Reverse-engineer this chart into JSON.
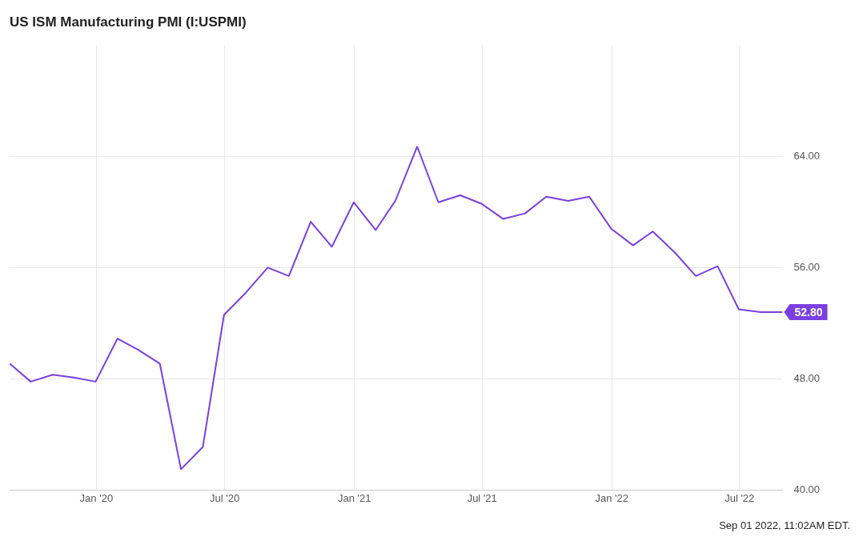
{
  "chart_data": {
    "type": "line",
    "title": "US ISM Manufacturing PMI (I:USPMI)",
    "x": [
      "2019-08-31",
      "2019-09-30",
      "2019-10-31",
      "2019-11-30",
      "2019-12-31",
      "2020-01-31",
      "2020-02-29",
      "2020-03-31",
      "2020-04-30",
      "2020-05-31",
      "2020-06-30",
      "2020-07-31",
      "2020-08-31",
      "2020-09-30",
      "2020-10-31",
      "2020-11-30",
      "2020-12-31",
      "2021-01-31",
      "2021-02-28",
      "2021-03-31",
      "2021-04-30",
      "2021-05-31",
      "2021-06-30",
      "2021-07-31",
      "2021-08-31",
      "2021-09-30",
      "2021-10-31",
      "2021-11-30",
      "2021-12-31",
      "2022-01-31",
      "2022-02-28",
      "2022-03-31",
      "2022-04-30",
      "2022-05-31",
      "2022-06-30",
      "2022-07-31",
      "2022-08-31"
    ],
    "series": [
      {
        "color": "#7b3fe0",
        "values": [
          49.1,
          47.8,
          48.3,
          48.1,
          47.8,
          50.9,
          50.1,
          49.1,
          41.5,
          43.1,
          52.6,
          54.2,
          56.0,
          55.4,
          59.3,
          57.5,
          60.7,
          58.7,
          60.8,
          64.7,
          60.7,
          61.2,
          60.6,
          59.5,
          59.9,
          61.1,
          60.8,
          61.1,
          58.8,
          57.6,
          58.6,
          57.1,
          55.4,
          56.1,
          53.0,
          52.8,
          52.8
        ]
      }
    ],
    "xlim": [
      "2019-08-31",
      "2022-08-31"
    ],
    "xticks": [
      {
        "value": "2020-01-01",
        "label": "Jan '20"
      },
      {
        "value": "2020-07-01",
        "label": "Jul '20"
      },
      {
        "value": "2021-01-01",
        "label": "Jan '21"
      },
      {
        "value": "2021-07-01",
        "label": "Jul '21"
      },
      {
        "value": "2022-01-01",
        "label": "Jan '22"
      },
      {
        "value": "2022-07-01",
        "label": "Jul '22"
      }
    ],
    "ylim": [
      40,
      72
    ],
    "yticks": [
      {
        "value": 40,
        "label": "40.00"
      },
      {
        "value": 48,
        "label": "48.00"
      },
      {
        "value": 56,
        "label": "56.00"
      },
      {
        "value": 64,
        "label": "64.00"
      }
    ],
    "grid": true,
    "legend": false,
    "marker": "none",
    "line_style": "solid",
    "annotations": [
      {
        "text": "52.80",
        "x": "2022-08-31",
        "y": 52.8
      },
      "Sep 01 2022, 11:02AM EDT."
    ]
  }
}
